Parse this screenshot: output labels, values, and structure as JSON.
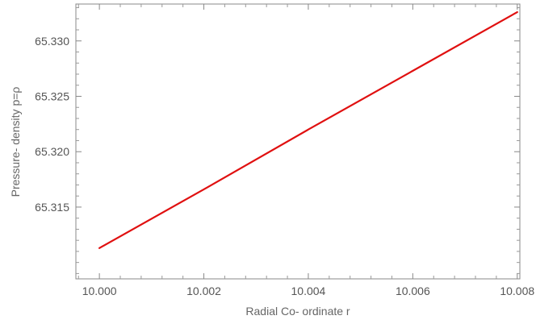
{
  "chart_data": {
    "type": "line",
    "title": "",
    "xlabel": "Radial Co- ordinate r",
    "ylabel": "Pressure- density p=ρ",
    "xlim": [
      9.99955,
      10.00805
    ],
    "ylim": [
      65.30852,
      65.33333
    ],
    "x_ticks": [
      10.0,
      10.002,
      10.004,
      10.006,
      10.008
    ],
    "x_tick_labels": [
      "10.000",
      "10.002",
      "10.004",
      "10.006",
      "10.008"
    ],
    "y_ticks": [
      65.315,
      65.32,
      65.325,
      65.33
    ],
    "y_tick_labels": [
      "65.315",
      "65.320",
      "65.325",
      "65.330"
    ],
    "grid": false,
    "series": [
      {
        "color": "#e01010",
        "x": [
          10.0,
          10.002,
          10.004,
          10.006,
          10.008
        ],
        "y": [
          65.3113,
          65.3166,
          65.322,
          65.3273,
          65.3326
        ]
      }
    ]
  }
}
